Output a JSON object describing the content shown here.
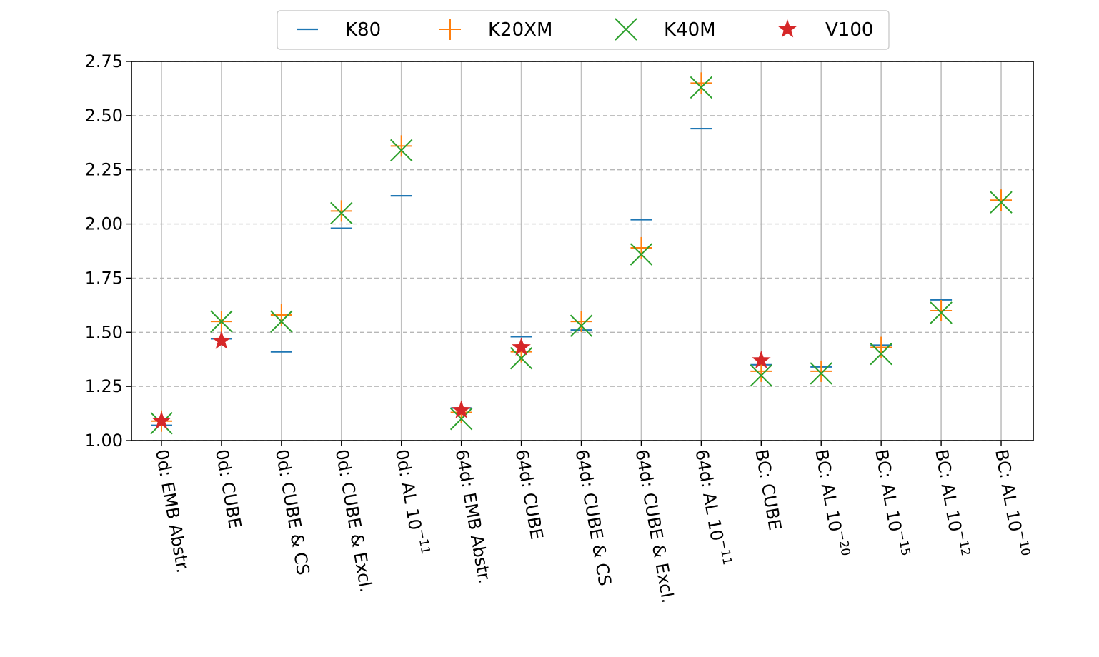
{
  "chart_data": {
    "type": "scatter",
    "categories": [
      [
        "0d: EMB Abstr.",
        ""
      ],
      [
        "0d: CUBE",
        ""
      ],
      [
        "0d: CUBE & CS",
        ""
      ],
      [
        "0d: CUBE & Excl.",
        ""
      ],
      [
        "0d: AL 10",
        "−11"
      ],
      [
        "64d: EMB Abstr.",
        ""
      ],
      [
        "64d: CUBE",
        ""
      ],
      [
        "64d: CUBE & CS",
        ""
      ],
      [
        "64d: CUBE & Excl.",
        ""
      ],
      [
        "64d: AL 10",
        "−11"
      ],
      [
        "BC: CUBE",
        ""
      ],
      [
        "BC: AL 10",
        "−20"
      ],
      [
        "BC: AL 10",
        "−15"
      ],
      [
        "BC: AL 10",
        "−12"
      ],
      [
        "BC: AL 10",
        "−10"
      ]
    ],
    "series": [
      {
        "name": "K80",
        "marker": "hline",
        "color": "#1f77b4",
        "values": [
          1.07,
          1.47,
          1.41,
          1.98,
          2.13,
          1.15,
          1.48,
          1.51,
          2.02,
          2.44,
          1.35,
          1.34,
          1.44,
          1.65,
          null
        ]
      },
      {
        "name": "K20XM",
        "marker": "plus",
        "color": "#ff7f0e",
        "values": [
          1.09,
          1.55,
          1.58,
          2.06,
          2.36,
          1.13,
          1.41,
          1.55,
          1.89,
          2.65,
          1.32,
          1.32,
          1.43,
          1.6,
          2.11
        ]
      },
      {
        "name": "K40M",
        "marker": "x",
        "color": "#2ca02c",
        "values": [
          1.08,
          1.55,
          1.55,
          2.05,
          2.34,
          1.1,
          1.38,
          1.53,
          1.86,
          2.63,
          1.3,
          1.31,
          1.4,
          1.59,
          2.1
        ]
      },
      {
        "name": "V100",
        "marker": "star",
        "color": "#d62728",
        "values": [
          1.09,
          1.46,
          null,
          null,
          null,
          1.14,
          1.43,
          null,
          null,
          null,
          1.37,
          null,
          null,
          null,
          null
        ]
      }
    ],
    "yticks": [
      "1.00",
      "1.25",
      "1.50",
      "1.75",
      "2.00",
      "2.25",
      "2.50",
      "2.75"
    ],
    "ylim": [
      1.0,
      2.75
    ],
    "title": "",
    "xlabel": "",
    "ylabel": "",
    "grid": true,
    "legend_position": "top-center"
  }
}
